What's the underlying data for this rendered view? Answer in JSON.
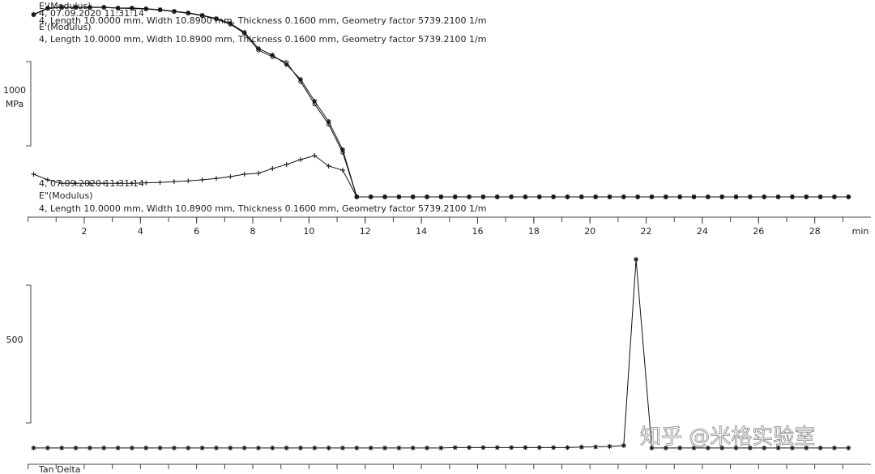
{
  "chart_data": [
    {
      "type": "line",
      "log_y": true,
      "x_label": "min",
      "y_label": "MPa",
      "xlim": [
        0,
        30
      ],
      "xticks": [
        2,
        4,
        6,
        8,
        10,
        12,
        14,
        16,
        18,
        20,
        22,
        24,
        26,
        28
      ],
      "ylim": [
        1,
        400000
      ],
      "yticks": [
        1000
      ],
      "x": [
        0.2,
        0.7,
        1.2,
        1.7,
        2.2,
        2.7,
        3.2,
        3.7,
        4.2,
        4.7,
        5.2,
        5.7,
        6.2,
        6.7,
        7.2,
        7.7,
        8.2,
        8.7,
        9.2,
        9.7,
        10.2,
        10.7,
        11.2,
        11.7,
        12.2,
        12.7,
        13.2,
        13.7,
        14.2,
        14.7,
        15.2,
        15.7,
        16.2,
        16.7,
        17.2,
        17.7,
        18.2,
        18.7,
        19.2,
        19.7,
        20.2,
        20.7,
        21.2,
        21.7,
        22.2,
        22.7,
        23.2,
        23.7,
        24.2,
        24.7,
        25.2,
        25.7,
        26.2,
        26.7,
        27.2,
        27.7,
        28.2,
        28.7,
        29.2
      ],
      "series": [
        {
          "name": "E'(Modulus)",
          "sample": "4, 07.09.2020 11:31:14",
          "geometry": "4, Length 10.0000 mm, Width 10.8900 mm, Thickness 0.1600 mm, Geometry factor 5739.2100 1/m",
          "marker": "star",
          "color": "#111111",
          "values": [
            204000,
            310000,
            327000,
            327000,
            327000,
            327000,
            310000,
            310000,
            295000,
            279000,
            251000,
            226000,
            193000,
            157000,
            114000,
            64000,
            22300,
            14600,
            7800,
            3000,
            725,
            194,
            31,
            1.45,
            1.45,
            1.45,
            1.45,
            1.45,
            1.45,
            1.45,
            1.45,
            1.45,
            1.45,
            1.45,
            1.45,
            1.45,
            1.45,
            1.45,
            1.45,
            1.45,
            1.45,
            1.45,
            1.45,
            1.45,
            1.45,
            1.45,
            1.45,
            1.45,
            1.45,
            1.45,
            1.45,
            1.45,
            1.45,
            1.45,
            1.45,
            1.45,
            1.45,
            1.45,
            1.45
          ]
        },
        {
          "name": "E'(Modulus)",
          "geometry": "4, Length 10.0000 mm, Width 10.8900 mm, Thickness 0.1600 mm, Geometry factor 5739.2100 1/m",
          "marker": "circle",
          "color": "#111111",
          "values": [
            200000,
            300000,
            320000,
            320000,
            320000,
            320000,
            305000,
            300000,
            290000,
            272000,
            245000,
            220000,
            188000,
            150000,
            108000,
            60000,
            20000,
            13000,
            9000,
            2600,
            600,
            160,
            26,
            1.45,
            1.45,
            1.45,
            1.45,
            1.45,
            1.45,
            1.45,
            1.45,
            1.45,
            1.45,
            1.45,
            1.45,
            1.45,
            1.45,
            1.45,
            1.45,
            1.45,
            1.45,
            1.45,
            1.45,
            1.45,
            1.45,
            1.45,
            1.45,
            1.45,
            1.45,
            1.45,
            1.45,
            1.45,
            1.45,
            1.45,
            1.45,
            1.45,
            1.45,
            1.45,
            1.45
          ]
        },
        {
          "name": "E\"(Modulus)",
          "sample": "4, 07.09.2020 11:31:14",
          "geometry": "4, Length 10.0000 mm, Width 10.8900 mm, Thickness 0.1600 mm, Geometry factor 5739.2100 1/m",
          "marker": "plus",
          "color": "#111111",
          "values": [
            6.3,
            4.4,
            3.5,
            3.5,
            3.5,
            3.5,
            3.5,
            3.5,
            3.6,
            3.7,
            3.9,
            4.1,
            4.4,
            4.8,
            5.4,
            6.3,
            6.7,
            9.1,
            11.9,
            16.3,
            21.2,
            10.7,
            8.2,
            1.45,
            1.45,
            1.45,
            1.45,
            1.45,
            1.45,
            1.45,
            1.45,
            1.45,
            1.45,
            1.45,
            1.45,
            1.45,
            1.45,
            1.45,
            1.45,
            1.45,
            1.45,
            1.45,
            1.45,
            1.45,
            1.45,
            1.45,
            1.45,
            1.45,
            1.45,
            1.45,
            1.45,
            1.45,
            1.45,
            1.45,
            1.45,
            1.45,
            1.45,
            1.45,
            1.45
          ]
        }
      ]
    },
    {
      "type": "line",
      "log_y": false,
      "xlim": [
        0,
        30
      ],
      "ylim": [
        -71,
        914
      ],
      "yticks": [
        500
      ],
      "x": [
        0.2,
        0.7,
        1.2,
        1.7,
        2.2,
        2.7,
        3.2,
        3.7,
        4.2,
        4.7,
        5.2,
        5.7,
        6.2,
        6.7,
        7.2,
        7.7,
        8.2,
        8.7,
        9.2,
        9.7,
        10.2,
        10.7,
        11.2,
        11.7,
        12.2,
        12.7,
        13.2,
        13.7,
        14.2,
        14.7,
        15.2,
        15.7,
        16.2,
        16.7,
        17.2,
        17.7,
        18.2,
        18.7,
        19.2,
        19.7,
        20.2,
        20.7,
        21.2,
        21.64,
        22.2,
        22.7,
        23.2,
        23.7,
        24.2,
        24.7,
        25.2,
        25.7,
        26.2,
        26.7,
        27.2,
        27.7,
        28.2,
        28.7,
        29.2
      ],
      "series": [
        {
          "name": "Tan Delta",
          "marker": "star",
          "color": "#111111",
          "values": [
            1,
            1,
            1,
            1,
            1,
            1,
            1,
            1,
            1,
            1,
            1,
            1,
            1,
            1,
            1,
            1,
            1,
            1,
            1,
            1,
            1,
            1,
            1,
            1,
            1,
            1,
            1,
            1,
            1,
            1,
            3,
            3,
            3,
            3,
            3,
            3,
            3,
            3,
            3,
            5,
            6,
            8,
            12,
            876,
            1,
            1,
            1,
            1,
            1,
            1,
            1,
            1,
            1,
            1,
            1,
            1,
            1,
            1,
            1
          ]
        }
      ]
    }
  ],
  "watermark": "知乎 @米格实验室"
}
